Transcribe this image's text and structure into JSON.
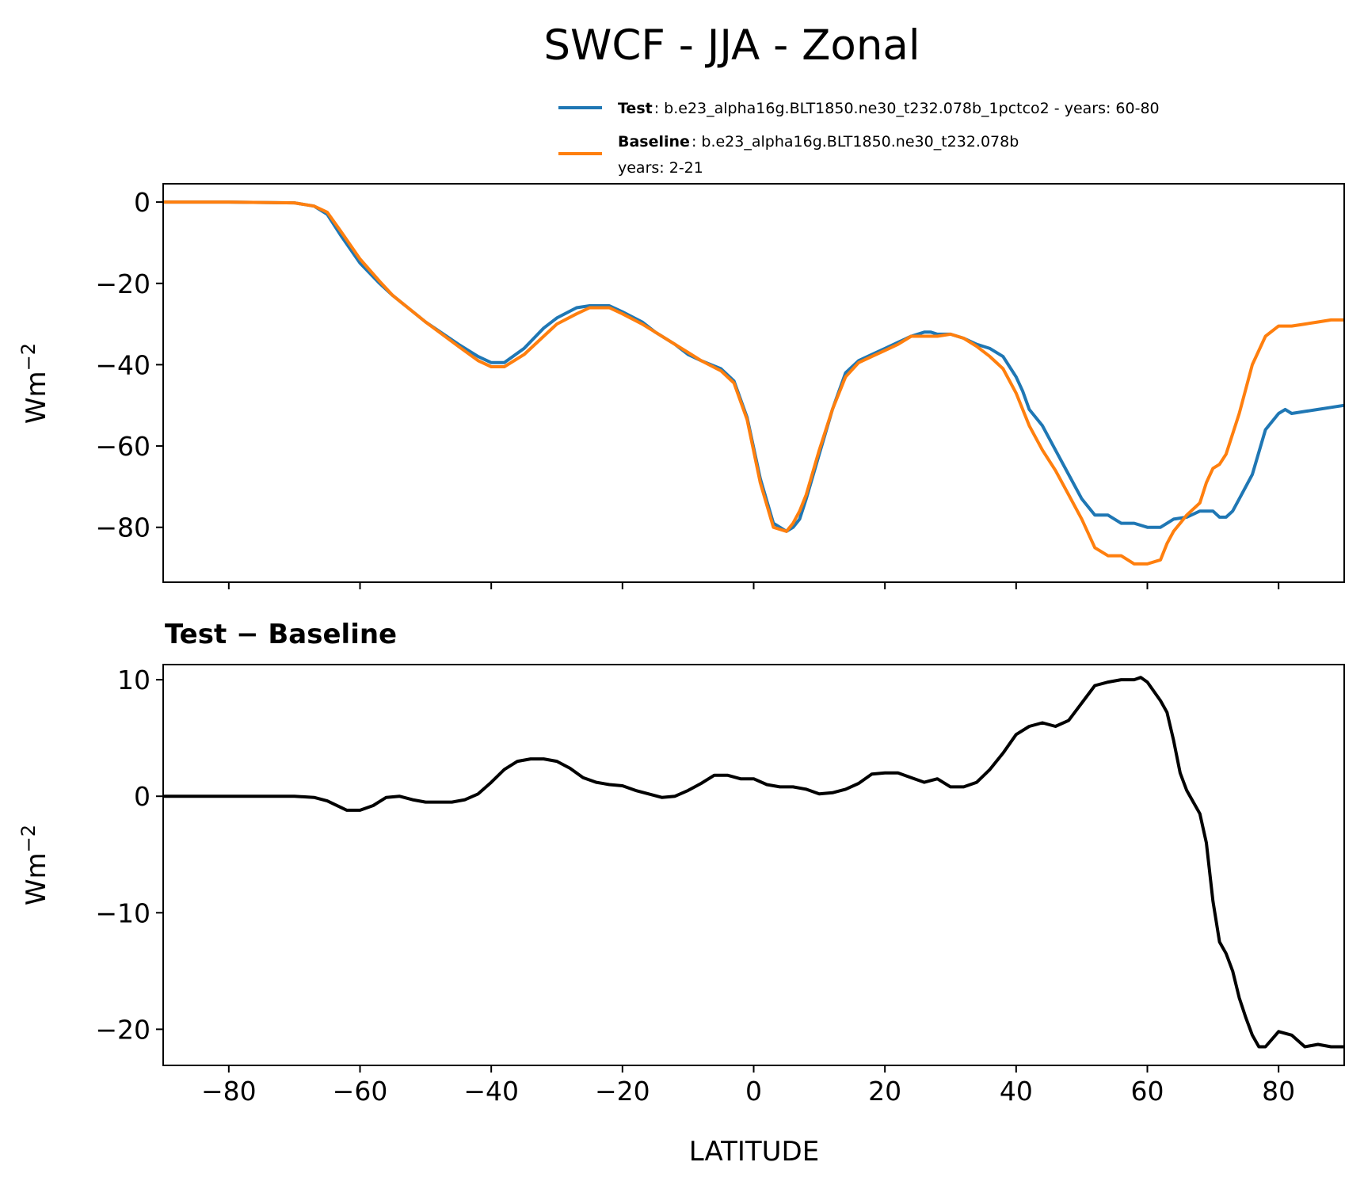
{
  "title": "SWCF - JJA - Zonal",
  "legend": {
    "test": {
      "name": "Test",
      "text": ": b.e23_alpha16g.BLT1850.ne30_t232.078b_1pctco2 - years: 60-80"
    },
    "baseline": {
      "name": "Baseline",
      "text": ": b.e23_alpha16g.BLT1850.ne30_t232.078b",
      "text2": "years: 2-21"
    }
  },
  "colors": {
    "test": "#1f77b4",
    "baseline": "#ff7f0e",
    "diff": "#000000"
  },
  "chart_data": [
    {
      "type": "line",
      "ylabel": "Wm",
      "ylabel_sup": "−2",
      "xlim": [
        -90,
        90
      ],
      "ylim": [
        -93.5,
        4.5
      ],
      "yticks": [
        0,
        -20,
        -40,
        -60,
        -80
      ],
      "ytick_labels": [
        "0",
        "−20",
        "−40",
        "−60",
        "−80"
      ],
      "xticks": [
        -80,
        -60,
        -40,
        -20,
        0,
        20,
        40,
        60,
        80
      ],
      "series": [
        {
          "name": "Test",
          "x": [
            -90,
            -80,
            -70,
            -67,
            -65,
            -63,
            -60,
            -57,
            -55,
            -50,
            -45,
            -42,
            -40,
            -38,
            -35,
            -32,
            -30,
            -27,
            -25,
            -22,
            -20,
            -17,
            -15,
            -12,
            -10,
            -8,
            -5,
            -3,
            -1,
            1,
            3,
            5,
            6,
            7,
            8,
            10,
            12,
            14,
            16,
            18,
            20,
            22,
            24,
            26,
            27,
            28,
            30,
            32,
            34,
            36,
            38,
            40,
            41,
            42,
            43,
            44,
            46,
            48,
            50,
            52,
            54,
            56,
            58,
            60,
            62,
            64,
            66,
            68,
            70,
            71,
            72,
            73,
            74,
            76,
            78,
            80,
            81,
            82,
            84,
            86,
            88,
            90
          ],
          "values": [
            0,
            0,
            -0.2,
            -1,
            -3,
            -8,
            -15,
            -20,
            -23,
            -29.5,
            -35,
            -38,
            -39.5,
            -39.5,
            -36,
            -31,
            -28.5,
            -26,
            -25.5,
            -25.5,
            -27,
            -29.5,
            -32,
            -35,
            -37.5,
            -39,
            -41,
            -44,
            -53,
            -68,
            -79,
            -81,
            -80,
            -78,
            -73,
            -62,
            -51,
            -42,
            -39,
            -37.5,
            -36,
            -34.5,
            -33,
            -32,
            -32,
            -32.5,
            -32.5,
            -33.5,
            -35,
            -36,
            -38,
            -43,
            -46.5,
            -51,
            -53,
            -55,
            -61,
            -67,
            -73,
            -77,
            -77,
            -79,
            -79,
            -80,
            -80,
            -78,
            -77.5,
            -76,
            -76,
            -77.5,
            -77.5,
            -76,
            -73,
            -67,
            -56,
            -52,
            -51,
            -52,
            -51.5,
            -51,
            -50.5,
            -50
          ]
        },
        {
          "name": "Baseline",
          "x": [
            -90,
            -80,
            -70,
            -67,
            -65,
            -63,
            -60,
            -57,
            -55,
            -50,
            -45,
            -42,
            -40,
            -38,
            -35,
            -32,
            -30,
            -27,
            -25,
            -22,
            -20,
            -17,
            -15,
            -12,
            -10,
            -8,
            -5,
            -3,
            -1,
            1,
            3,
            5,
            6,
            7,
            8,
            10,
            12,
            14,
            16,
            18,
            20,
            22,
            24,
            26,
            28,
            30,
            32,
            34,
            36,
            38,
            40,
            42,
            44,
            46,
            48,
            50,
            52,
            54,
            56,
            58,
            60,
            62,
            63,
            64,
            65,
            66,
            68,
            69,
            70,
            71,
            72,
            74,
            76,
            78,
            80,
            82,
            84,
            86,
            88,
            90
          ],
          "values": [
            0,
            0,
            -0.2,
            -1,
            -2.5,
            -7,
            -14,
            -19.5,
            -23,
            -29.5,
            -35.5,
            -39,
            -40.5,
            -40.5,
            -37.5,
            -33,
            -30,
            -27.5,
            -26,
            -26,
            -27.5,
            -30,
            -32,
            -35,
            -37,
            -39,
            -41.5,
            -44.5,
            -53.5,
            -69,
            -80,
            -81,
            -79,
            -76,
            -72,
            -61,
            -51,
            -43,
            -39.5,
            -38,
            -36.5,
            -35,
            -33,
            -33,
            -33,
            -32.5,
            -33.5,
            -35.5,
            -38,
            -41,
            -47,
            -55,
            -61,
            -66,
            -72,
            -78,
            -85,
            -87,
            -87,
            -89,
            -89,
            -88,
            -84,
            -81,
            -79,
            -77,
            -74,
            -69,
            -65.5,
            -64.5,
            -62,
            -52,
            -40,
            -33,
            -30.5,
            -30.5,
            -30,
            -29.5,
            -29,
            -29
          ]
        }
      ]
    },
    {
      "type": "line",
      "title": "Test − Baseline",
      "ylabel": "Wm",
      "ylabel_sup": "−2",
      "xlabel": "LATITUDE",
      "xlim": [
        -90,
        90
      ],
      "ylim": [
        -23.1,
        11.3
      ],
      "yticks": [
        10,
        0,
        -10,
        -20
      ],
      "ytick_labels": [
        "10",
        "0",
        "−10",
        "−20"
      ],
      "xticks": [
        -80,
        -60,
        -40,
        -20,
        0,
        20,
        40,
        60,
        80
      ],
      "xtick_labels": [
        "−80",
        "−60",
        "−40",
        "−20",
        "0",
        "20",
        "40",
        "60",
        "80"
      ],
      "series": [
        {
          "name": "Test − Baseline",
          "x": [
            -90,
            -80,
            -70,
            -67,
            -65,
            -62,
            -60,
            -58,
            -56,
            -54,
            -52,
            -50,
            -48,
            -46,
            -44,
            -42,
            -40,
            -38,
            -36,
            -34,
            -32,
            -30,
            -28,
            -26,
            -24,
            -22,
            -20,
            -18,
            -16,
            -14,
            -12,
            -10,
            -8,
            -6,
            -4,
            -2,
            0,
            2,
            4,
            6,
            8,
            10,
            12,
            14,
            16,
            18,
            20,
            22,
            24,
            26,
            28,
            30,
            32,
            34,
            36,
            38,
            40,
            42,
            44,
            46,
            48,
            50,
            52,
            54,
            56,
            58,
            59,
            60,
            62,
            63,
            64,
            65,
            66,
            68,
            69,
            70,
            71,
            72,
            73,
            74,
            75,
            76,
            77,
            78,
            80,
            82,
            84,
            86,
            88,
            90
          ],
          "values": [
            0,
            0,
            0,
            -0.1,
            -0.4,
            -1.2,
            -1.2,
            -0.8,
            -0.1,
            0,
            -0.3,
            -0.5,
            -0.5,
            -0.5,
            -0.3,
            0.2,
            1.2,
            2.3,
            3.0,
            3.2,
            3.2,
            3.0,
            2.4,
            1.6,
            1.2,
            1.0,
            0.9,
            0.5,
            0.2,
            -0.1,
            0,
            0.5,
            1.1,
            1.8,
            1.8,
            1.5,
            1.5,
            1.0,
            0.8,
            0.8,
            0.6,
            0.2,
            0.3,
            0.6,
            1.1,
            1.9,
            2.0,
            2.0,
            1.6,
            1.2,
            1.5,
            0.8,
            0.8,
            1.2,
            2.3,
            3.7,
            5.3,
            6.0,
            6.3,
            6.0,
            6.5,
            8.0,
            9.5,
            9.8,
            10.0,
            10.0,
            10.2,
            9.8,
            8.2,
            7.2,
            4.8,
            2.0,
            0.5,
            -1.5,
            -4,
            -9,
            -12.5,
            -13.5,
            -15,
            -17.3,
            -19,
            -20.5,
            -21.5,
            -21.5,
            -20.2,
            -20.5,
            -21.5,
            -21.3,
            -21.5,
            -21.5
          ]
        }
      ]
    }
  ]
}
